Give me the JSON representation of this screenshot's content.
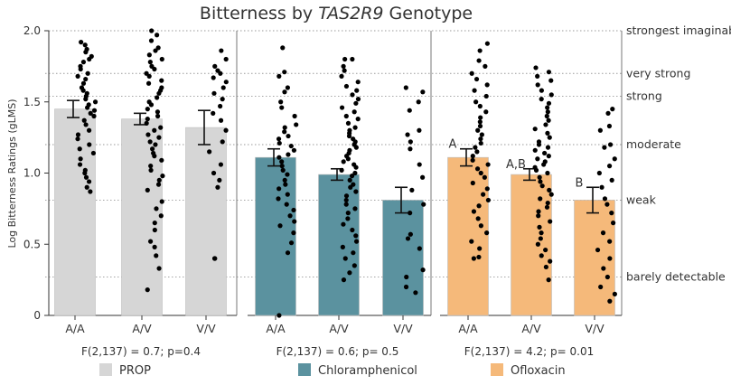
{
  "chart_data": {
    "type": "bar",
    "title_prefix": "Bitterness by ",
    "title_gene": "TAS2R9",
    "title_suffix": " Genotype",
    "ylabel": "Log Bitterness Ratings (gLMS)",
    "ylim": [
      0,
      2.0
    ],
    "yticks": [
      "0",
      "0.5",
      "1.0",
      "1.5",
      "2.0"
    ],
    "ytick_values": [
      0,
      0.5,
      1.0,
      1.5,
      2.0
    ],
    "categories": [
      "A/A",
      "A/V",
      "V/V"
    ],
    "intensity_labels": [
      {
        "label": "strongest imaginable",
        "value": 2.0
      },
      {
        "label": "very strong",
        "value": 1.7
      },
      {
        "label": "strong",
        "value": 1.54
      },
      {
        "label": "moderate",
        "value": 1.2
      },
      {
        "label": "weak",
        "value": 0.81
      },
      {
        "label": "barely detectable",
        "value": 0.27
      }
    ],
    "series": [
      {
        "name": "PROP",
        "color": "#d6d6d6",
        "stat": "F(2,137) = 0.7; p=0.4",
        "means": [
          1.45,
          1.38,
          1.32
        ],
        "errors": [
          0.06,
          0.04,
          0.12
        ],
        "letters": [
          "",
          "",
          ""
        ],
        "points": [
          [
            1.92,
            1.9,
            1.87,
            1.85,
            1.82,
            1.8,
            1.78,
            1.75,
            1.73,
            1.7,
            1.68,
            1.66,
            1.63,
            1.6,
            1.58,
            1.56,
            1.54,
            1.52,
            1.5,
            1.48,
            1.46,
            1.44,
            1.42,
            1.4,
            1.37,
            1.34,
            1.3,
            1.27,
            1.24,
            1.2,
            1.17,
            1.14,
            1.1,
            1.06,
            1.02,
            1.0,
            0.97,
            0.94,
            0.9,
            0.87
          ],
          [
            2.0,
            1.97,
            1.93,
            1.88,
            1.86,
            1.83,
            1.8,
            1.78,
            1.75,
            1.73,
            1.7,
            1.68,
            1.65,
            1.63,
            1.6,
            1.58,
            1.56,
            1.53,
            1.5,
            1.48,
            1.45,
            1.43,
            1.4,
            1.38,
            1.35,
            1.32,
            1.3,
            1.27,
            1.25,
            1.22,
            1.2,
            1.17,
            1.14,
            1.12,
            1.09,
            1.05,
            1.02,
            0.98,
            0.95,
            0.92,
            0.88,
            0.8,
            0.75,
            0.7,
            0.65,
            0.6,
            0.52,
            0.48,
            0.42,
            0.33,
            0.18
          ],
          [
            1.86,
            1.8,
            1.75,
            1.72,
            1.7,
            1.67,
            1.64,
            1.6,
            1.56,
            1.52,
            1.47,
            1.42,
            1.37,
            1.3,
            1.22,
            1.15,
            1.06,
            1.0,
            0.95,
            0.9,
            0.4,
            0.4
          ]
        ]
      },
      {
        "name": "Chloramphenicol",
        "color": "#5b929f",
        "stat": "F(2,137) = 0.6; p= 0.5",
        "means": [
          1.11,
          0.99,
          0.81
        ],
        "errors": [
          0.06,
          0.04,
          0.09
        ],
        "letters": [
          "",
          "",
          ""
        ],
        "points": [
          [
            1.88,
            1.71,
            1.68,
            1.6,
            1.57,
            1.5,
            1.46,
            1.4,
            1.34,
            1.32,
            1.29,
            1.26,
            1.24,
            1.21,
            1.19,
            1.16,
            1.13,
            1.11,
            1.08,
            1.05,
            1.02,
            0.99,
            0.95,
            0.92,
            0.89,
            0.85,
            0.82,
            0.78,
            0.74,
            0.7,
            0.66,
            0.63,
            0.58,
            0.51,
            0.44,
            0.0
          ],
          [
            1.8,
            1.8,
            1.75,
            1.72,
            1.68,
            1.64,
            1.61,
            1.58,
            1.55,
            1.52,
            1.49,
            1.46,
            1.43,
            1.4,
            1.38,
            1.35,
            1.32,
            1.3,
            1.28,
            1.26,
            1.24,
            1.22,
            1.2,
            1.18,
            1.16,
            1.14,
            1.12,
            1.1,
            1.08,
            1.06,
            1.04,
            1.02,
            1.0,
            0.98,
            0.95,
            0.92,
            0.9,
            0.87,
            0.84,
            0.81,
            0.78,
            0.75,
            0.72,
            0.68,
            0.64,
            0.6,
            0.56,
            0.52,
            0.48,
            0.44,
            0.4,
            0.35,
            0.3,
            0.25
          ],
          [
            1.6,
            1.57,
            1.5,
            1.44,
            1.3,
            1.27,
            1.22,
            1.17,
            1.06,
            0.97,
            0.88,
            0.78,
            0.72,
            0.57,
            0.54,
            0.47,
            0.32,
            0.27,
            0.2,
            0.16
          ]
        ]
      },
      {
        "name": "Ofloxacin",
        "color": "#f5b97a",
        "stat": "F(2,137) = 4.2; p= 0.01",
        "means": [
          1.11,
          0.99,
          0.81
        ],
        "errors": [
          0.06,
          0.04,
          0.09
        ],
        "letters": [
          "A",
          "A,B",
          "B"
        ],
        "points": [
          [
            1.91,
            1.86,
            1.79,
            1.75,
            1.7,
            1.66,
            1.62,
            1.58,
            1.54,
            1.5,
            1.47,
            1.43,
            1.39,
            1.36,
            1.33,
            1.3,
            1.27,
            1.24,
            1.21,
            1.18,
            1.15,
            1.12,
            1.09,
            1.06,
            1.03,
            1.0,
            0.97,
            0.93,
            0.89,
            0.85,
            0.81,
            0.77,
            0.73,
            0.68,
            0.63,
            0.58,
            0.52,
            0.47,
            0.41,
            0.4
          ],
          [
            1.74,
            1.71,
            1.68,
            1.65,
            1.62,
            1.58,
            1.55,
            1.52,
            1.49,
            1.46,
            1.43,
            1.4,
            1.37,
            1.34,
            1.31,
            1.28,
            1.25,
            1.22,
            1.2,
            1.18,
            1.16,
            1.14,
            1.12,
            1.1,
            1.08,
            1.06,
            1.04,
            1.02,
            1.0,
            0.97,
            0.94,
            0.91,
            0.88,
            0.85,
            0.82,
            0.79,
            0.76,
            0.73,
            0.7,
            0.66,
            0.62,
            0.58,
            0.54,
            0.5,
            0.46,
            0.42,
            0.38,
            0.34,
            0.25
          ],
          [
            1.45,
            1.42,
            1.33,
            1.3,
            1.2,
            1.18,
            1.1,
            1.05,
            1.0,
            0.95,
            0.9,
            0.82,
            0.78,
            0.72,
            0.65,
            0.58,
            0.52,
            0.46,
            0.4,
            0.33,
            0.27,
            0.2,
            0.15,
            0.1
          ]
        ]
      }
    ]
  }
}
